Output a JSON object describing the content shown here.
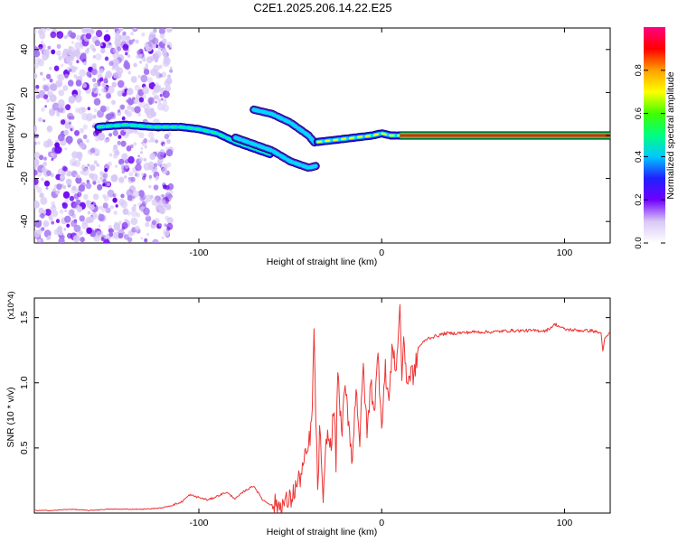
{
  "title": "C2E1.2025.206.14.22.E25",
  "chart_data": [
    {
      "type": "heatmap",
      "xlabel": "Height of straight line (km)",
      "ylabel": "Frequency (Hz)",
      "xlim": [
        -190,
        125
      ],
      "ylim": [
        -50,
        50
      ],
      "xticks": [
        -100,
        0,
        100
      ],
      "xtick_labels": [
        "-100",
        "0",
        "100"
      ],
      "yticks": [
        -40,
        -20,
        0,
        20,
        40
      ],
      "ytick_labels": [
        "-40",
        "-20",
        "0",
        "20",
        "40"
      ],
      "colorbar": {
        "label": "Normalized spectral amplitude",
        "range": [
          0,
          1
        ],
        "ticks": [
          0.0,
          0.2,
          0.4,
          0.6,
          0.8
        ],
        "tick_labels": [
          "0.0",
          "0.2",
          "0.4",
          "0.6",
          "0.8"
        ],
        "colors": [
          "#ffffff",
          "#d9c8f5",
          "#7000ff",
          "#2020ff",
          "#00c8ff",
          "#00ff80",
          "#40ff00",
          "#ffff00",
          "#ffa000",
          "#ff0000",
          "#ff0080"
        ]
      },
      "noise_region": {
        "x": [
          -190,
          -115
        ],
        "y": [
          -50,
          50
        ],
        "amplitude": 0.1
      },
      "ridges": [
        {
          "name": "main",
          "points": [
            [
              -155,
              4
            ],
            [
              -140,
              5
            ],
            [
              -125,
              4
            ],
            [
              -110,
              4
            ],
            [
              -100,
              3
            ],
            [
              -90,
              1
            ],
            [
              -80,
              -3
            ],
            [
              -70,
              -6
            ],
            [
              -60,
              -9
            ]
          ],
          "amplitude": 0.5
        },
        {
          "name": "lower",
          "points": [
            [
              -80,
              -1
            ],
            [
              -70,
              -4
            ],
            [
              -60,
              -7
            ],
            [
              -50,
              -12
            ],
            [
              -40,
              -15
            ],
            [
              -35,
              -14
            ]
          ],
          "amplitude": 0.25
        },
        {
          "name": "upper",
          "points": [
            [
              -70,
              12
            ],
            [
              -60,
              10
            ],
            [
              -50,
              6
            ],
            [
              -40,
              0
            ],
            [
              -36,
              -4
            ]
          ],
          "amplitude": 0.25
        },
        {
          "name": "right",
          "points": [
            [
              -35,
              -3
            ],
            [
              -25,
              -2
            ],
            [
              -15,
              -1
            ],
            [
              -5,
              0
            ],
            [
              0,
              1
            ],
            [
              5,
              0
            ],
            [
              10,
              0
            ]
          ],
          "amplitude": 0.7
        },
        {
          "name": "steady",
          "points": [
            [
              10,
              0
            ],
            [
              125,
              0
            ]
          ],
          "amplitude": 0.95
        }
      ]
    },
    {
      "type": "line",
      "xlabel": "Height of straight line (km)",
      "ylabel": "SNR (10 * v/v)",
      "multiplier_label": "(x10^4)",
      "xlim": [
        -190,
        125
      ],
      "ylim": [
        0,
        1.65
      ],
      "xticks": [
        -100,
        0,
        100
      ],
      "xtick_labels": [
        "-100",
        "0",
        "100"
      ],
      "yticks": [
        0.5,
        1.0,
        1.5
      ],
      "ytick_labels": [
        "0.5",
        "1.0",
        "1.5"
      ],
      "color": "#ee3333",
      "series": [
        {
          "x": [
            -190,
            -180,
            -170,
            -160,
            -150,
            -140,
            -130,
            -120,
            -115,
            -110,
            -105,
            -100,
            -95,
            -90,
            -85,
            -80,
            -75,
            -70,
            -65,
            -60,
            -55,
            -50,
            -45,
            -40,
            -38,
            -37,
            -36,
            -35,
            -34,
            -33,
            -32,
            -30,
            -28,
            -26,
            -25,
            -24,
            -22,
            -20,
            -18,
            -16,
            -14,
            -12,
            -10,
            -8,
            -6,
            -4,
            -2,
            0,
            2,
            4,
            6,
            8,
            10,
            11,
            12,
            14,
            16,
            18,
            20,
            22,
            25,
            30,
            35,
            40,
            50,
            60,
            70,
            80,
            90,
            95,
            100,
            110,
            115,
            120,
            121,
            122,
            125
          ],
          "y": [
            0.02,
            0.02,
            0.03,
            0.02,
            0.03,
            0.03,
            0.03,
            0.04,
            0.06,
            0.08,
            0.14,
            0.12,
            0.1,
            0.13,
            0.16,
            0.11,
            0.17,
            0.21,
            0.1,
            0.06,
            0.06,
            0.1,
            0.26,
            0.5,
            0.75,
            1.42,
            0.7,
            0.2,
            0.6,
            0.45,
            0.05,
            0.62,
            0.5,
            0.8,
            0.4,
            1.12,
            0.6,
            0.95,
            0.7,
            0.4,
            1.0,
            0.55,
            1.13,
            0.6,
            1.0,
            0.8,
            1.2,
            0.7,
            1.1,
            0.85,
            1.3,
            1.08,
            1.6,
            1.06,
            1.34,
            1.0,
            1.08,
            1.06,
            1.27,
            1.3,
            1.34,
            1.36,
            1.38,
            1.38,
            1.39,
            1.39,
            1.4,
            1.4,
            1.4,
            1.45,
            1.41,
            1.4,
            1.4,
            1.38,
            1.25,
            1.33,
            1.39
          ]
        }
      ]
    }
  ]
}
